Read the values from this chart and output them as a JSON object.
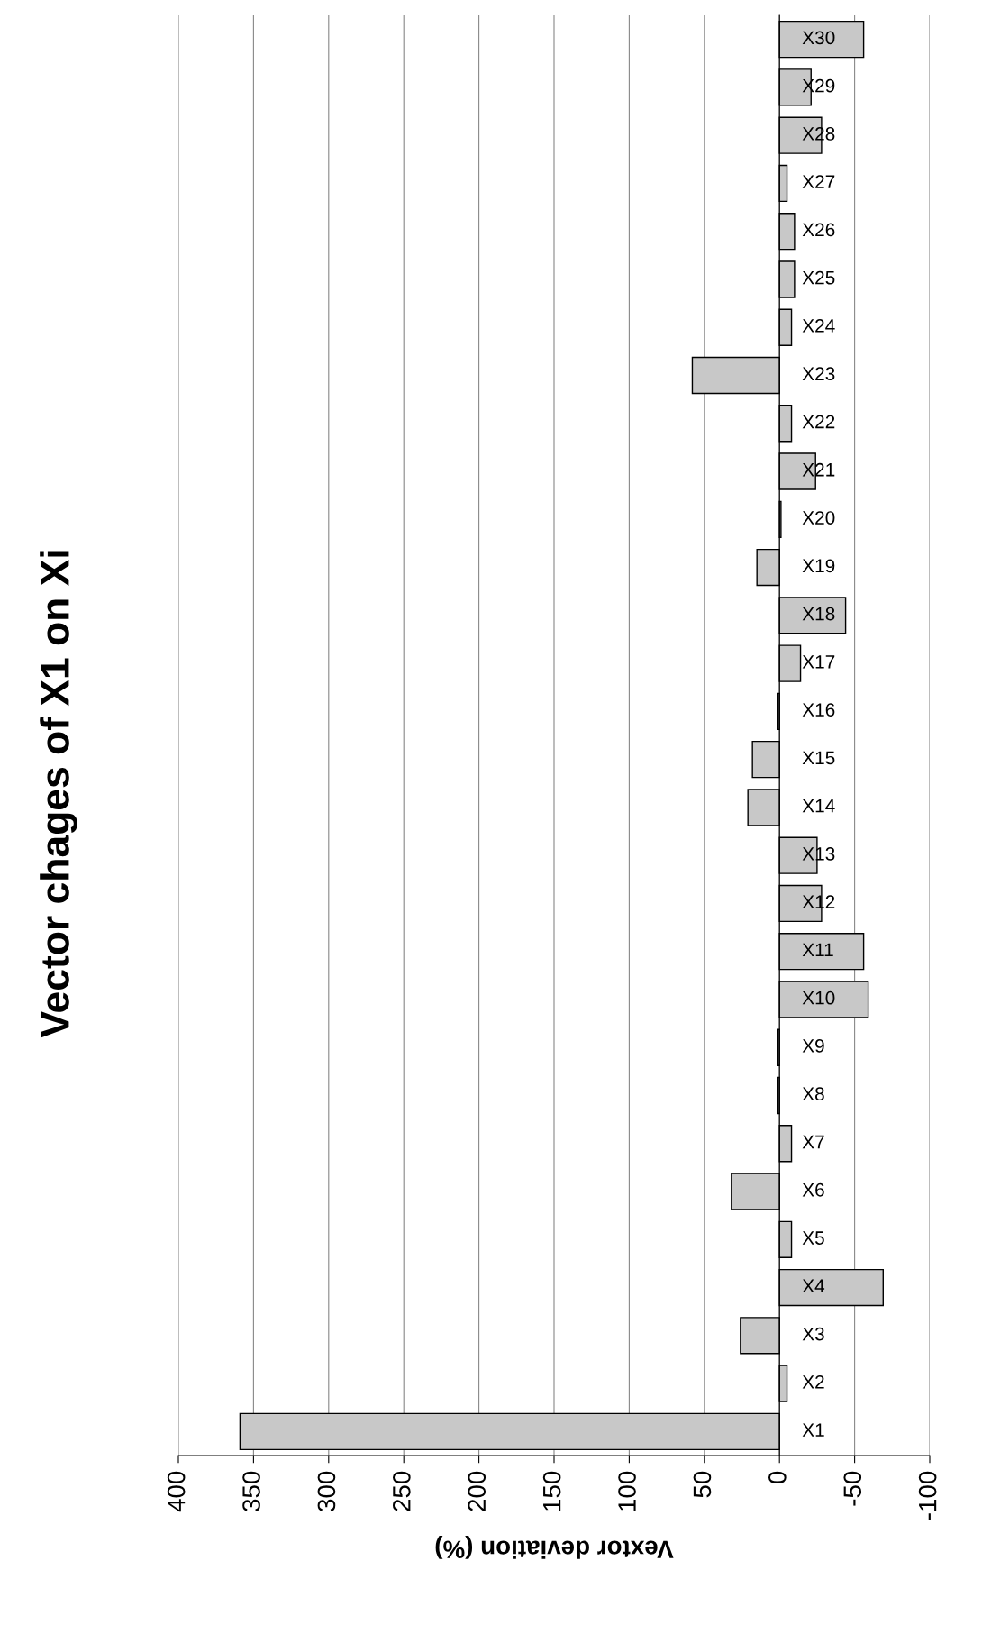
{
  "chart_data": {
    "type": "bar",
    "orientation": "horizontal",
    "title": "Vector chages of X1 on Xi",
    "xlabel": "Vextor deviation (%)",
    "categories": [
      "X30",
      "X29",
      "X28",
      "X27",
      "X26",
      "X25",
      "X24",
      "X23",
      "X22",
      "X21",
      "X20",
      "X19",
      "X18",
      "X17",
      "X16",
      "X15",
      "X14",
      "X13",
      "X12",
      "X11",
      "X10",
      "X9",
      "X8",
      "X7",
      "X6",
      "X5",
      "X4",
      "X3",
      "X2",
      "X1"
    ],
    "values": [
      -56,
      -21,
      -28,
      -5,
      -10,
      -10,
      -8,
      58,
      -8,
      -24,
      -1,
      15,
      -44,
      -14,
      1,
      18,
      21,
      -25,
      -28,
      -56,
      -59,
      1,
      1,
      -8,
      32,
      -8,
      -69,
      26,
      -5,
      359
    ],
    "color": "#c8c8c8",
    "xlim": [
      400,
      -100
    ],
    "xticks": [
      400,
      350,
      300,
      250,
      200,
      150,
      100,
      50,
      0,
      {
        "value": -50,
        "label": "-50"
      },
      {
        "value": -100,
        "label": "-100"
      }
    ],
    "grid": "x"
  }
}
